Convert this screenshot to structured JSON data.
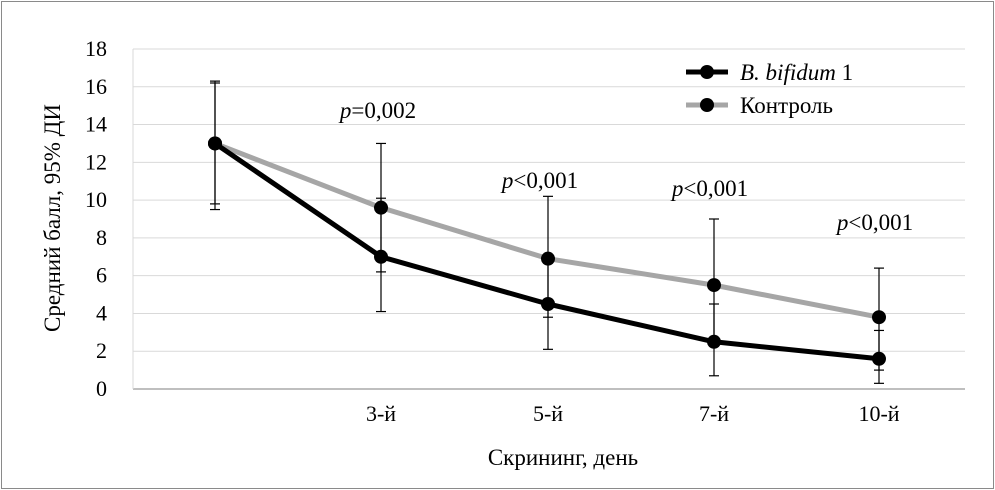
{
  "chart_data": {
    "type": "line",
    "xlabel": "Скрининг, день",
    "ylabel": "Средний балл, 95% ДИ",
    "ylim": [
      0,
      18
    ],
    "yticks": [
      0,
      2,
      4,
      6,
      8,
      10,
      12,
      14,
      16,
      18
    ],
    "categories": [
      "",
      "3-й",
      "5-й",
      "7-й",
      "10-й"
    ],
    "grid": true,
    "legend_position": "top-right",
    "colors": {
      "bifidum": "#000000",
      "control": "#a6a6a6"
    },
    "series": [
      {
        "key": "bifidum",
        "name_italic": "B. bifidum",
        "name_suffix": " 1",
        "values": [
          13.0,
          7.0,
          4.5,
          2.5,
          1.6
        ],
        "ci_low": [
          9.5,
          4.1,
          2.1,
          0.7,
          0.3
        ],
        "ci_high": [
          16.3,
          10.1,
          6.9,
          4.5,
          3.1
        ]
      },
      {
        "key": "control",
        "name": "Контроль",
        "values": [
          13.0,
          9.6,
          6.9,
          5.5,
          3.8
        ],
        "ci_low": [
          9.8,
          6.2,
          3.8,
          2.4,
          1.0
        ],
        "ci_high": [
          16.2,
          13.0,
          10.2,
          9.0,
          6.4
        ]
      }
    ],
    "annotations": [
      {
        "category": "3-й",
        "italic": "p",
        "text": "=0,002"
      },
      {
        "category": "5-й",
        "italic": "p",
        "text": "<0,001"
      },
      {
        "category": "7-й",
        "italic": "p",
        "text": "<0,001"
      },
      {
        "category": "10-й",
        "italic": "p",
        "text": "<0,001"
      }
    ]
  }
}
